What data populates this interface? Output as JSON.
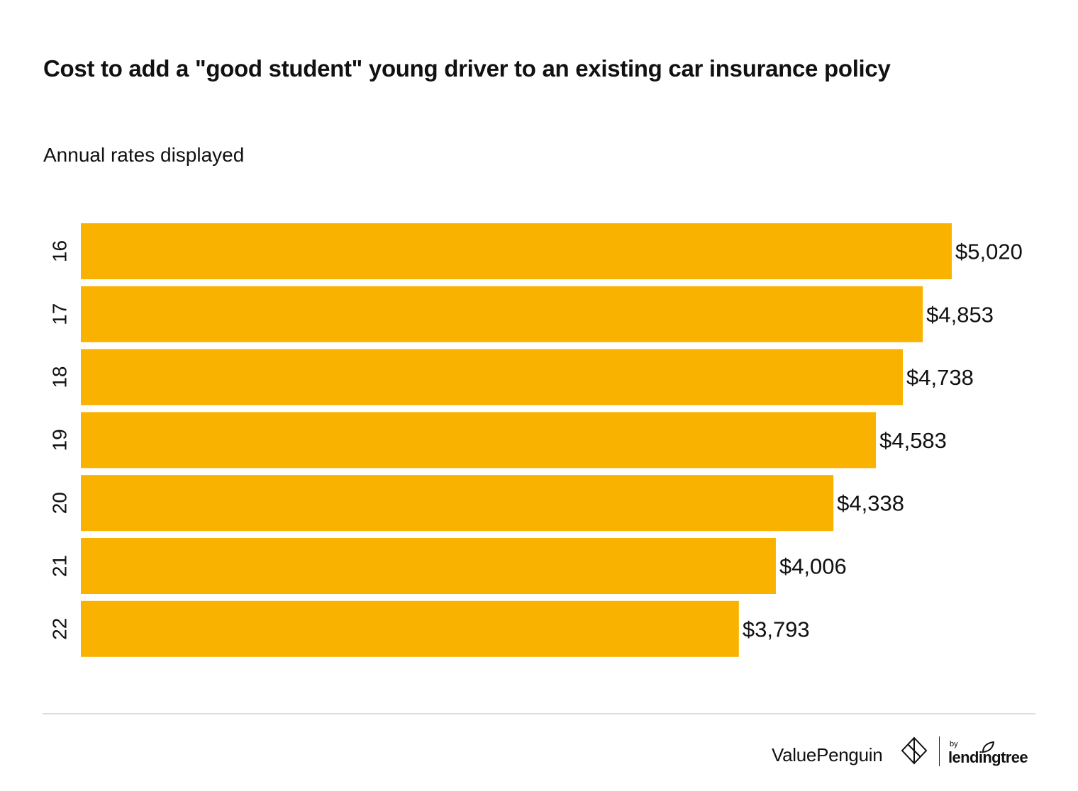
{
  "chart_data": {
    "type": "bar",
    "orientation": "horizontal",
    "title": "Cost to add a \"good student\" young driver to an existing car insurance policy",
    "subtitle": "Annual rates displayed",
    "categories": [
      "16",
      "17",
      "18",
      "19",
      "20",
      "21",
      "22"
    ],
    "values": [
      5020,
      4853,
      4738,
      4583,
      4338,
      4006,
      3793
    ],
    "data_labels": [
      "$5,020",
      "$4,853",
      "$4,738",
      "$4,583",
      "$4,338",
      "$4,006",
      "$3,793"
    ],
    "xlim": [
      0,
      5020
    ],
    "grid": false,
    "legend": "none",
    "colors": {
      "bar": "#F9B200"
    }
  },
  "footer": {
    "brand": "ValuePenguin",
    "brand_icon": "valuepenguin-logo-icon",
    "by": "by",
    "partner": "lendingtree",
    "partner_icon": "leaf-icon"
  }
}
